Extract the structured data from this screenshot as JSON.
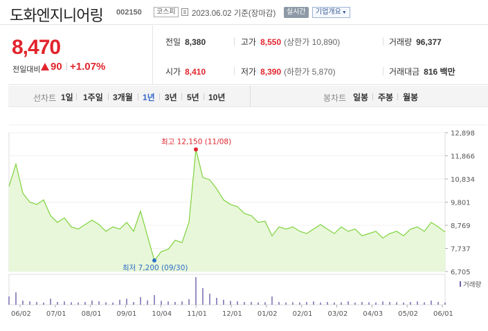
{
  "header": {
    "company_name": "도화엔지니어링",
    "code": "002150",
    "market": "코스피",
    "date_text": "2023.06.02 기준(장마감)",
    "realtime_label": "실시간",
    "company_info_label": "기업개요"
  },
  "price": {
    "current": "8,470",
    "change_label": "전일대비",
    "change_amount": "90",
    "change_rate": "+1.07%"
  },
  "stats": {
    "prev_close_label": "전일",
    "prev_close": "8,380",
    "high_label": "고가",
    "high": "8,550",
    "upper_limit": "(상한가 10,890)",
    "volume_label": "거래량",
    "volume": "96,377",
    "open_label": "시가",
    "open": "8,410",
    "low_label": "저가",
    "low": "8,390",
    "lower_limit": "(하한가 5,870)",
    "amount_label": "거래대금",
    "amount": "816 백만"
  },
  "period_tabs": {
    "label": "선차트",
    "items": [
      "1일",
      "1주일",
      "3개월",
      "1년",
      "3년",
      "5년",
      "10년"
    ],
    "active": "1년"
  },
  "candle_tabs": {
    "label": "봉차트",
    "items": [
      "일봉",
      "주봉",
      "월봉"
    ]
  },
  "colors": {
    "up": "#e1242c",
    "line": "#7ed23c",
    "fill": "#e8f7d9",
    "volume": "#6b5fa8",
    "active_tab": "#3568c7"
  },
  "chart_data": {
    "type": "area",
    "ylim": [
      6705,
      12898
    ],
    "y_ticks": [
      "12,898",
      "11,866",
      "10,834",
      "9,801",
      "8,769",
      "7,737",
      "6,705"
    ],
    "y_tick_values": [
      12898,
      11866,
      10834,
      9801,
      8769,
      7737,
      6705
    ],
    "x_labels": [
      "06/02",
      "07/01",
      "08/01",
      "09/01",
      "10/04",
      "11/01",
      "12/01",
      "01/02",
      "02/01",
      "03/02",
      "04/03",
      "05/02",
      "06/01"
    ],
    "max_annotation": "최고 12,150 (11/08)",
    "max_value": 12150,
    "max_index": 27,
    "min_annotation": "최저 7,200 (09/30)",
    "min_value": 7200,
    "min_index": 21,
    "volume_legend": "거래량",
    "series": [
      {
        "values": [
          10500,
          11500,
          10200,
          9800,
          9700,
          9900,
          9200,
          8900,
          9100,
          8700,
          8600,
          8800,
          9000,
          8800,
          8500,
          8700,
          8600,
          8900,
          8500,
          9400,
          8300,
          7200,
          7600,
          7700,
          8100,
          8000,
          8900,
          12150,
          10900,
          10800,
          10400,
          9900,
          9700,
          9600,
          9300,
          9200,
          8900,
          8950,
          8300,
          8700,
          8600,
          8700,
          8500,
          8400,
          8600,
          8800,
          8600,
          8400,
          8700,
          8500,
          8600,
          8300,
          8400,
          8500,
          8200,
          8400,
          8500,
          8300,
          8600,
          8700,
          8500,
          8900,
          8700,
          8470
        ]
      }
    ],
    "volume": [
      30,
      45,
      15,
      12,
      10,
      8,
      22,
      10,
      12,
      9,
      8,
      10,
      15,
      12,
      9,
      8,
      18,
      22,
      10,
      28,
      16,
      35,
      14,
      12,
      10,
      12,
      20,
      100,
      60,
      40,
      25,
      18,
      14,
      12,
      10,
      10,
      8,
      9,
      30,
      10,
      8,
      9,
      8,
      10,
      12,
      8,
      10,
      8,
      9,
      12,
      8,
      10,
      9,
      8,
      12,
      10,
      9,
      8,
      10,
      12,
      9,
      15,
      10,
      8
    ]
  }
}
